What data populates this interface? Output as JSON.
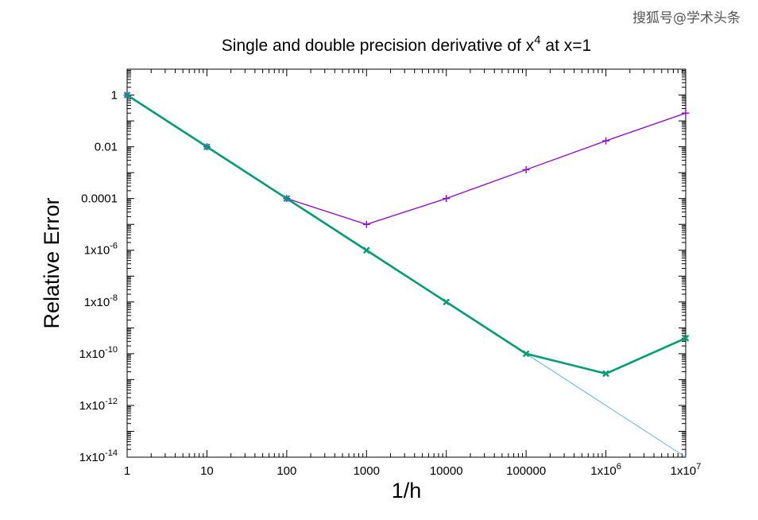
{
  "watermark": "搜狐号@学术头条",
  "chart_data": {
    "type": "line",
    "title": "Single and double precision derivative of x",
    "title_sup": "4",
    "title_tail": " at x=1",
    "xlabel": "1/h",
    "ylabel": "Relative Error",
    "x_scale": "log",
    "y_scale": "log",
    "xlim": [
      1,
      10000000
    ],
    "ylim": [
      1e-14,
      10
    ],
    "grid": false,
    "legend": "none",
    "x_ticks": [
      {
        "value": 1,
        "label": "1",
        "sup": ""
      },
      {
        "value": 10,
        "label": "10",
        "sup": ""
      },
      {
        "value": 100,
        "label": "100",
        "sup": ""
      },
      {
        "value": 1000,
        "label": "1000",
        "sup": ""
      },
      {
        "value": 10000,
        "label": "10000",
        "sup": ""
      },
      {
        "value": 100000,
        "label": "100000",
        "sup": ""
      },
      {
        "value": 1000000,
        "label": "1x10",
        "sup": "6"
      },
      {
        "value": 10000000,
        "label": "1x10",
        "sup": "7"
      }
    ],
    "y_ticks": [
      {
        "value": 1,
        "label": "1",
        "sup": ""
      },
      {
        "value": 0.01,
        "label": "0.01",
        "sup": ""
      },
      {
        "value": 0.0001,
        "label": "0.0001",
        "sup": ""
      },
      {
        "value": 1e-06,
        "label": "1x10",
        "sup": "-6"
      },
      {
        "value": 1e-08,
        "label": "1x10",
        "sup": "-8"
      },
      {
        "value": 1e-10,
        "label": "1x10",
        "sup": "-10"
      },
      {
        "value": 1e-12,
        "label": "1x10",
        "sup": "-12"
      },
      {
        "value": 1e-14,
        "label": "1x10",
        "sup": "-14"
      }
    ],
    "series": [
      {
        "color": "#9400d3",
        "marker": "plus",
        "line_width": 1.3,
        "x": [
          1,
          10,
          100,
          1000,
          10000,
          100000,
          1000000,
          10000000
        ],
        "y": [
          1,
          0.01,
          0.0001,
          1e-05,
          0.0001,
          0.0013,
          0.017,
          0.2
        ]
      },
      {
        "color": "#009e73",
        "marker": "cross",
        "line_width": 2.6,
        "x": [
          1,
          10,
          100,
          1000,
          10000,
          100000,
          1000000,
          10000000
        ],
        "y": [
          1,
          0.01,
          0.0001,
          1e-06,
          1e-08,
          1e-10,
          1.7e-11,
          4e-10
        ]
      },
      {
        "color": "#56b4e9",
        "marker": "none",
        "line_width": 1,
        "x": [
          1,
          10000000
        ],
        "y": [
          1,
          1e-14
        ]
      }
    ]
  }
}
